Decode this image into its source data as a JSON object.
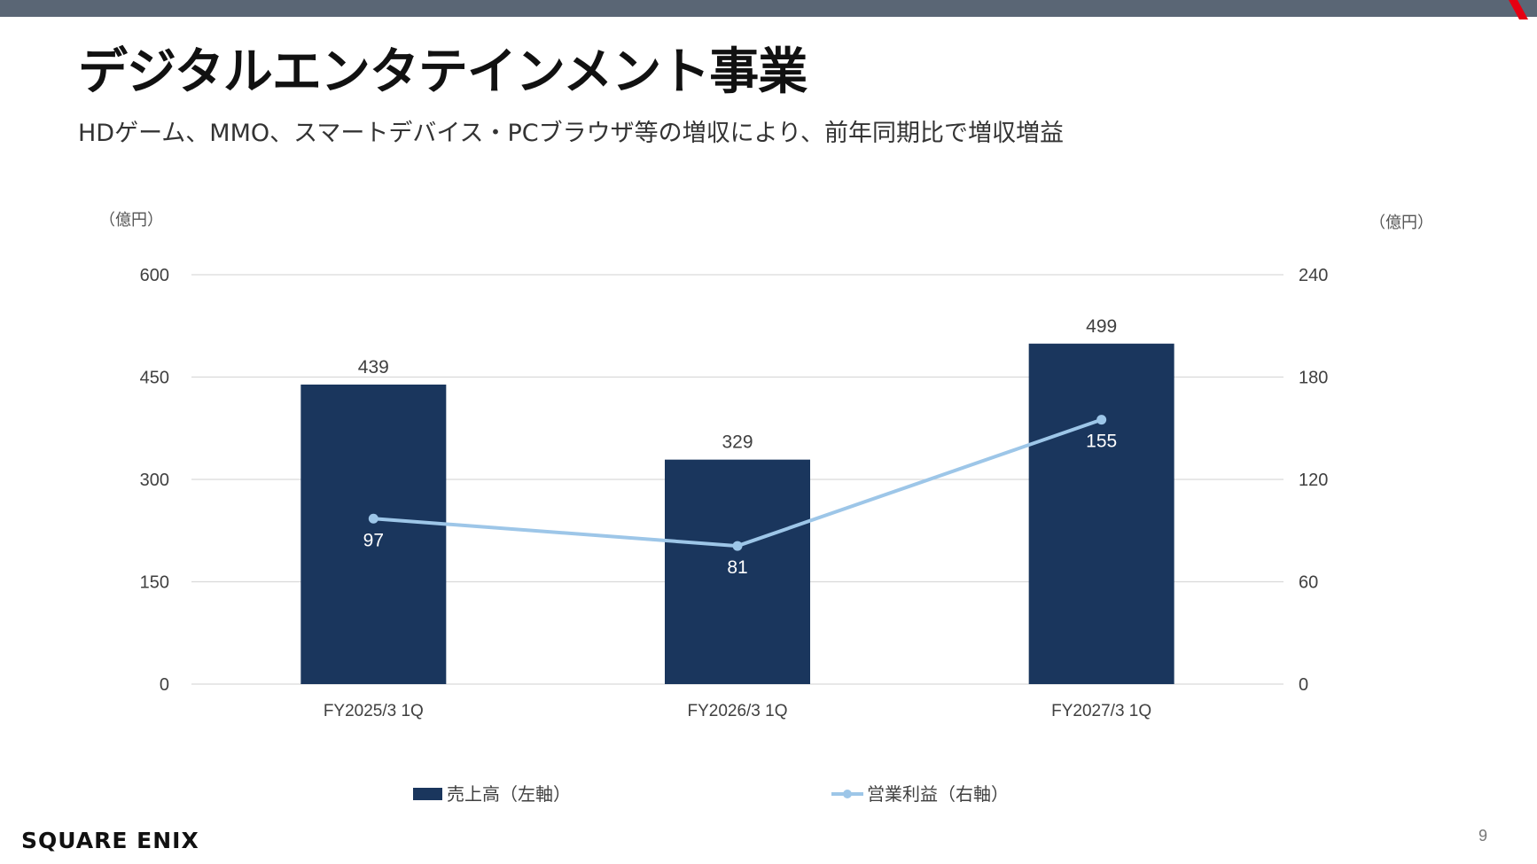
{
  "header": {
    "title": "デジタルエンタテインメント事業",
    "subtitle": "HDゲーム、MMO、スマートデバイス・PCブラウザ等の増収により、前年同期比で増収増益"
  },
  "chart_data": {
    "type": "bar",
    "categories": [
      "FY2025/3 1Q",
      "FY2026/3 1Q",
      "FY2027/3 1Q"
    ],
    "series": [
      {
        "name": "売上高（左軸）",
        "kind": "bar",
        "axis": "left",
        "values": [
          439,
          329,
          499
        ],
        "color": "#1a365d"
      },
      {
        "name": "営業利益（右軸）",
        "kind": "line",
        "axis": "right",
        "values": [
          97,
          81,
          155
        ],
        "color": "#9dc6e8"
      }
    ],
    "left_axis": {
      "unit_label": "（億円）",
      "ylim": [
        0,
        600
      ],
      "ticks": [
        0,
        150,
        300,
        450,
        600
      ]
    },
    "right_axis": {
      "unit_label": "（億円）",
      "ylim": [
        0,
        240
      ],
      "ticks": [
        0,
        60,
        120,
        180,
        240
      ]
    },
    "grid": true,
    "legend_position": "bottom"
  },
  "footer": {
    "logo_text": "SQUARE ENIX",
    "page_number": "9"
  },
  "colors": {
    "top_bar": "#5a6675",
    "accent": "#e60012",
    "bar": "#1a365d",
    "line": "#9dc6e8"
  }
}
